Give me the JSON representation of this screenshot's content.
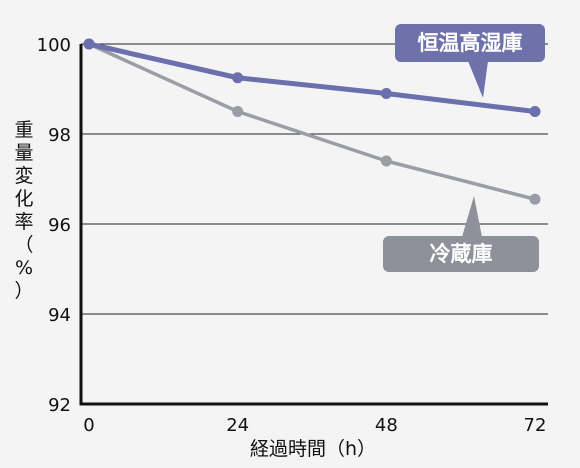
{
  "chart_data": {
    "type": "line",
    "x": [
      0,
      24,
      48,
      72
    ],
    "xlabel": "経過時間（h）",
    "ylabel": "重量変化率（%）",
    "xlim": [
      0,
      72
    ],
    "ylim": [
      92,
      100
    ],
    "yticks": [
      92,
      94,
      96,
      98,
      100
    ],
    "xticks": [
      0,
      24,
      48,
      72
    ],
    "grid": true,
    "series": [
      {
        "name": "恒温高湿庫",
        "values": [
          100,
          99.25,
          98.9,
          98.5
        ],
        "color": "#6b6fad",
        "label_bg": "#6e72aa"
      },
      {
        "name": "冷蔵庫",
        "values": [
          100,
          98.5,
          97.4,
          96.55
        ],
        "color": "#9a9da6",
        "label_bg": "#8e9199"
      }
    ]
  }
}
